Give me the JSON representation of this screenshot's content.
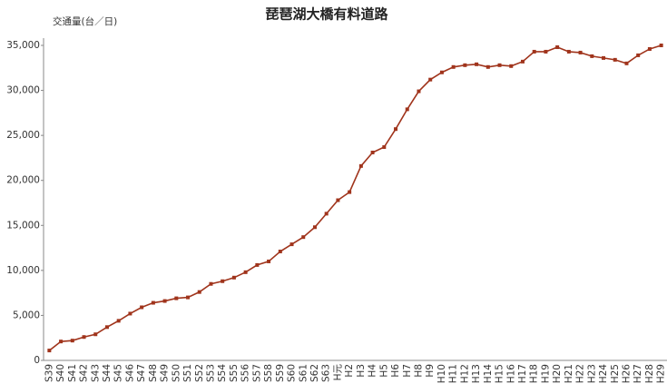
{
  "chart_data": {
    "type": "line",
    "title": "琵琶湖大橋有料道路",
    "y_label": "交通量(台／日)",
    "categories": [
      "S39",
      "S40",
      "S41",
      "S42",
      "S43",
      "S44",
      "S45",
      "S46",
      "S47",
      "S48",
      "S49",
      "S50",
      "S51",
      "S52",
      "S53",
      "S54",
      "S55",
      "S56",
      "S57",
      "S58",
      "S59",
      "S60",
      "S61",
      "S62",
      "S63",
      "H元",
      "H2",
      "H3",
      "H4",
      "H5",
      "H6",
      "H7",
      "H8",
      "H9",
      "H10",
      "H11",
      "H12",
      "H13",
      "H14",
      "H15",
      "H16",
      "H17",
      "H18",
      "H19",
      "H20",
      "H21",
      "H22",
      "H23",
      "H24",
      "H25",
      "H26",
      "H27",
      "H28",
      "H29"
    ],
    "values": [
      1100,
      2100,
      2200,
      2600,
      2900,
      3700,
      4400,
      5200,
      5900,
      6400,
      6600,
      6900,
      7000,
      7600,
      8500,
      8800,
      9200,
      9800,
      10600,
      11000,
      12100,
      12900,
      13700,
      14800,
      16300,
      17800,
      18700,
      21600,
      23100,
      23700,
      25700,
      27900,
      29900,
      31200,
      32000,
      32600,
      32800,
      32900,
      32600,
      32800,
      32700,
      33200,
      34300,
      34300,
      34800,
      34300,
      34200,
      33800,
      33600,
      33400,
      33000,
      33900,
      34600,
      35000
    ],
    "color": "#a0341c",
    "ylim": [
      0,
      35000
    ],
    "yticks": [
      0,
      {
        "value": 5000,
        "label": "5,000"
      },
      {
        "value": 10000,
        "label": "10,000"
      },
      {
        "value": 15000,
        "label": "15,000"
      },
      {
        "value": 20000,
        "label": "20,000"
      },
      {
        "value": 25000,
        "label": "25,000"
      },
      {
        "value": 30000,
        "label": "30,000"
      },
      {
        "value": 35000,
        "label": "35,000"
      }
    ],
    "grid": false
  }
}
